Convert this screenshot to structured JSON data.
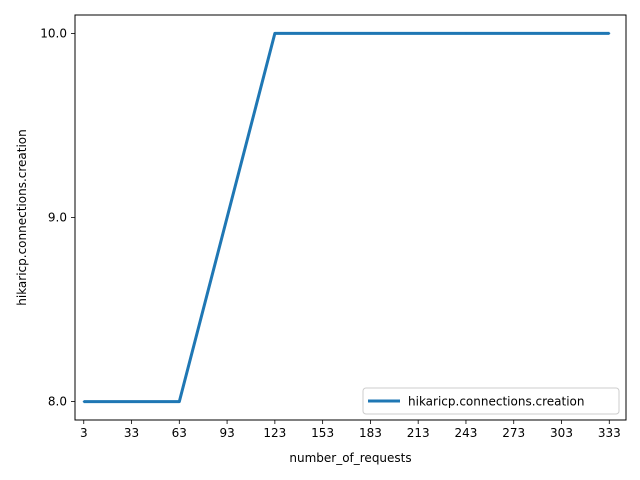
{
  "chart_data": {
    "type": "line",
    "xlabel": "number_of_requests",
    "ylabel": "hikaricp.connections.creation",
    "x_ticks": [
      "3",
      "33",
      "63",
      "93",
      "123",
      "153",
      "183",
      "213",
      "243",
      "273",
      "303",
      "333"
    ],
    "y_ticks": [
      "8.0",
      "9.0",
      "10.0"
    ],
    "xlim": [
      -2.5,
      343.5
    ],
    "ylim": [
      7.9,
      10.1
    ],
    "grid": false,
    "legend_position": "lower-right",
    "series": [
      {
        "name": "hikaricp.connections.creation",
        "color": "#1f77b4",
        "x": [
          3,
          33,
          63,
          93,
          123,
          153,
          183,
          213,
          243,
          273,
          303,
          333
        ],
        "y": [
          8,
          8,
          8,
          9,
          10,
          10,
          10,
          10,
          10,
          10,
          10,
          10
        ]
      }
    ]
  }
}
